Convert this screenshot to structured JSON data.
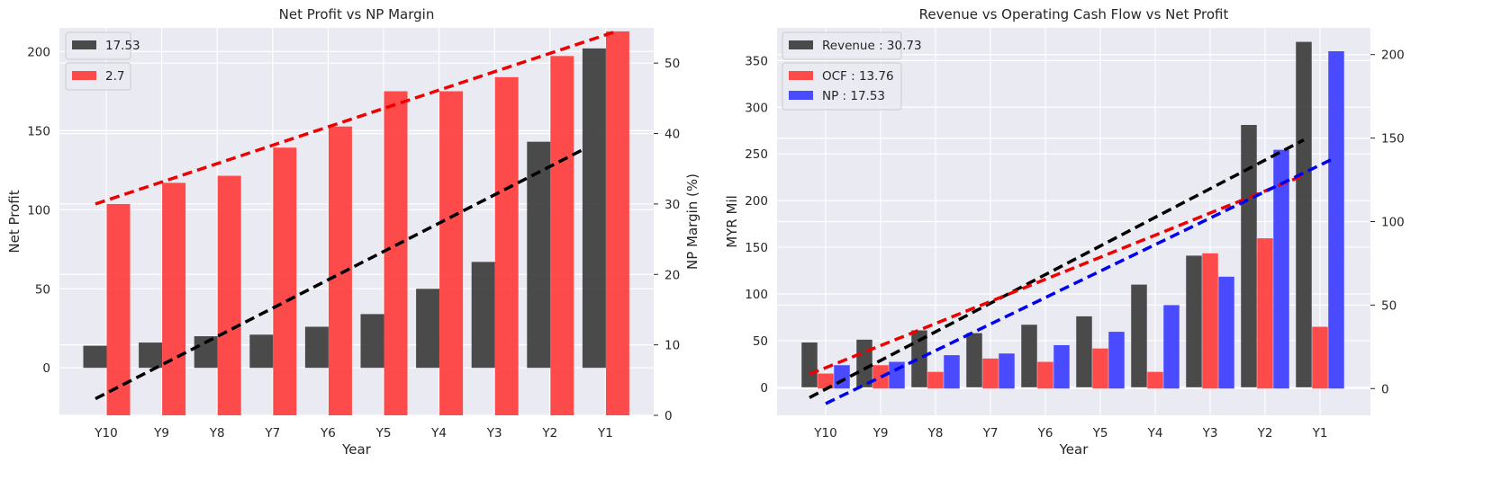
{
  "chart_data": [
    {
      "type": "bar",
      "title": "Net Profit vs NP Margin",
      "xlabel": "Year",
      "ylabel": "Net Profit",
      "ylabel_right": "NP Margin (%)",
      "categories": [
        "Y10",
        "Y9",
        "Y8",
        "Y7",
        "Y6",
        "Y5",
        "Y4",
        "Y3",
        "Y2",
        "Y1"
      ],
      "ylim": [
        -30,
        215
      ],
      "ylim_right": [
        0,
        55
      ],
      "yticks": [
        0,
        50,
        100,
        150,
        200
      ],
      "yticks_right": [
        0,
        10,
        20,
        30,
        40,
        50
      ],
      "grid": true,
      "legend_position": "top-left",
      "series": [
        {
          "name": "17.53",
          "axis": "left",
          "color": "#333333",
          "values": [
            14,
            16,
            20,
            21,
            26,
            34,
            50,
            67,
            143,
            202
          ]
        },
        {
          "name": "2.7",
          "axis": "right",
          "color": "#ff3333",
          "values": [
            30,
            33,
            34,
            38,
            41,
            46,
            46,
            48,
            51,
            54.5
          ]
        }
      ],
      "trendlines": [
        {
          "axis": "left",
          "color": "#000000",
          "from": [
            -19.5
          ],
          "to": [
            138
          ]
        },
        {
          "axis": "right",
          "color": "#ee0000",
          "from": [
            30
          ],
          "to": [
            54.5
          ]
        }
      ]
    },
    {
      "type": "bar",
      "title": "Revenue vs Operating Cash Flow vs Net Profit",
      "xlabel": "Year",
      "ylabel": "MYR Mil",
      "categories": [
        "Y10",
        "Y9",
        "Y8",
        "Y7",
        "Y6",
        "Y5",
        "Y4",
        "Y3",
        "Y2",
        "Y1"
      ],
      "ylim": [
        -30,
        385
      ],
      "ylim_right": [
        -16,
        216
      ],
      "yticks": [
        0,
        50,
        100,
        150,
        200,
        250,
        300,
        350
      ],
      "yticks_right": [
        0,
        50,
        100,
        150,
        200
      ],
      "grid": true,
      "legend_position": "top-left",
      "series": [
        {
          "name": "Revenue : 30.73",
          "axis": "left",
          "color": "#333333",
          "values": [
            48,
            51,
            61,
            58,
            67,
            76,
            110,
            141,
            281,
            370
          ]
        },
        {
          "name": "OCF : 13.76",
          "axis": "right",
          "color": "#ff3333",
          "values": [
            9,
            14,
            10,
            18,
            16,
            24,
            10,
            81,
            90,
            37
          ]
        },
        {
          "name": "NP : 17.53",
          "axis": "right",
          "color": "#3333ff",
          "values": [
            14,
            16,
            20,
            21,
            26,
            34,
            50,
            67,
            143,
            202
          ]
        }
      ],
      "trendlines": [
        {
          "axis": "left",
          "color": "#000000",
          "from": -11,
          "to": 265
        },
        {
          "axis": "left",
          "color": "#ee0000",
          "from": 14,
          "to": 227
        },
        {
          "axis": "right",
          "color": "#0000ee",
          "from": -9,
          "to": 138
        }
      ]
    }
  ]
}
